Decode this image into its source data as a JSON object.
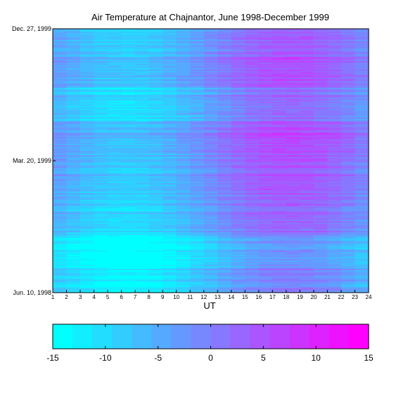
{
  "chart_data": {
    "type": "heatmap",
    "title": "Air Temperature at Chajnantor, June 1998-December 1999",
    "xlabel": "UT",
    "ylabel": "",
    "x_ticks": [
      "1",
      "2",
      "3",
      "4",
      "5",
      "6",
      "7",
      "8",
      "9",
      "10",
      "11",
      "12",
      "13",
      "14",
      "15",
      "16",
      "17",
      "18",
      "19",
      "20",
      "21",
      "22",
      "23",
      "24"
    ],
    "xlim": [
      1,
      24
    ],
    "y_ticks": [
      "Jun. 10, 1998",
      "Mar. 20, 1999",
      "Dec. 27, 1999"
    ],
    "colorbar": {
      "ticks": [
        "-15",
        "-10",
        "-5",
        "0",
        "5",
        "10",
        "15"
      ],
      "range": [
        -15,
        15
      ],
      "color_low": "#00ffff",
      "color_high": "#ff00ff"
    },
    "grid": false
  }
}
